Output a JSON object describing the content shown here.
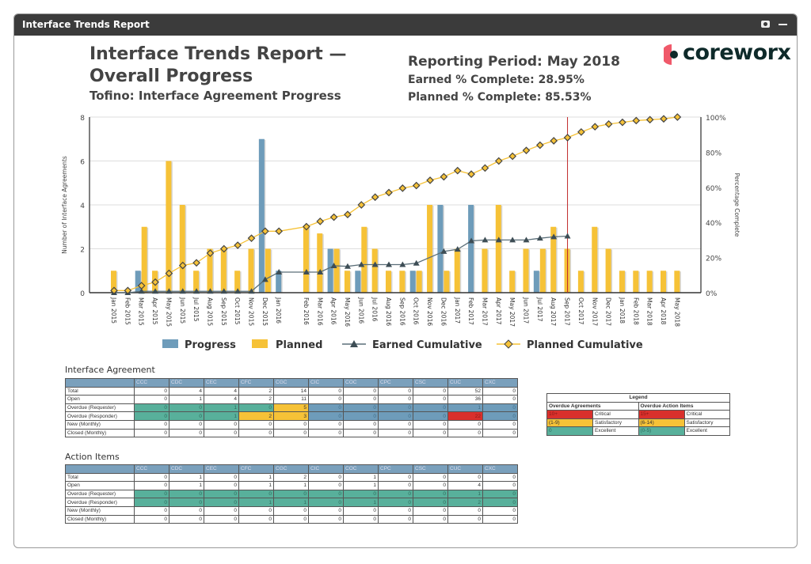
{
  "window": {
    "title": "Interface Trends Report",
    "icons": [
      "camera-icon",
      "minimize-icon"
    ]
  },
  "header": {
    "title": "Interface Trends Report — Overall Progress",
    "subtitle": "Tofino: Interface Agreement Progress",
    "reporting_period": "Reporting Period: May 2018",
    "earned": "Earned % Complete: 28.95%",
    "planned": "Planned % Complete: 85.53%",
    "logo": "coreworx"
  },
  "colors": {
    "progress": "#6e9cba",
    "planned": "#f6c237",
    "earned_line": "#5a6e78",
    "cutoff": "#c0292b",
    "green": "#58b09b",
    "yellow": "#f6c237",
    "red": "#d9302c",
    "blue": "#6e9cba"
  },
  "chart_data": {
    "type": "bar+line",
    "ylabel": "Number of Interface Agreements",
    "y2label": "Percentage Complete",
    "ylim": [
      0,
      8
    ],
    "yticks": [
      0,
      2,
      4,
      6,
      8
    ],
    "y2lim": [
      0,
      100
    ],
    "y2ticks": [
      "0%",
      "20%",
      "40%",
      "60%",
      "80%",
      "100%"
    ],
    "grid": true,
    "legend_position": "bottom",
    "cutoff_marker": "Sep 2017",
    "categories": [
      "Jan 2015",
      "Feb 2015",
      "Mar 2015",
      "Apr 2015",
      "May 2015",
      "Jun 2015",
      "Jul 2015",
      "Aug 2015",
      "Sep 2015",
      "Oct 2015",
      "Nov 2015",
      "Dec 2015",
      "Jan 2016",
      "Feb 2016",
      "Mar 2016",
      "Apr 2016",
      "May 2016",
      "Jun 2016",
      "Jul 2016",
      "Aug 2016",
      "Sep 2016",
      "Oct 2016",
      "Nov 2016",
      "Dec 2016",
      "Jan 2017",
      "Feb 2017",
      "Mar 2017",
      "Apr 2017",
      "May 2017",
      "Jun 2017",
      "Jul 2017",
      "Aug 2017",
      "Sep 2017",
      "Oct 2017",
      "Nov 2017",
      "Dec 2017",
      "Jan 2018",
      "Feb 2018",
      "Mar 2018",
      "Apr 2018",
      "May 2018"
    ],
    "series": [
      {
        "name": "Progress",
        "type": "bar",
        "axis": "left",
        "values": [
          0,
          0,
          1,
          0,
          0,
          0,
          0,
          0,
          0,
          0,
          0,
          7,
          1,
          0,
          0,
          2,
          0,
          1,
          0,
          0,
          0,
          1,
          0,
          4,
          0,
          4,
          0,
          0,
          0,
          0,
          1,
          0,
          0,
          0,
          0,
          0,
          0,
          0,
          0,
          0,
          0
        ]
      },
      {
        "name": "Planned",
        "type": "bar",
        "axis": "left",
        "values": [
          1,
          0,
          3,
          1,
          6,
          4,
          1,
          2,
          2,
          1,
          2,
          2,
          0,
          3,
          2.7,
          2,
          1,
          3,
          2,
          1,
          1,
          1,
          4,
          1,
          2,
          0,
          2,
          4,
          1,
          2,
          2,
          3,
          2,
          1,
          3,
          2,
          1,
          1,
          1,
          1,
          1
        ]
      },
      {
        "name": "Earned Cumulative",
        "type": "line",
        "axis": "right",
        "values": [
          0,
          0,
          0.8,
          0.8,
          0.8,
          0.8,
          0.8,
          0.8,
          0.8,
          0.8,
          0.8,
          7.5,
          11.7,
          11.7,
          11.7,
          15.3,
          15,
          16,
          16,
          16,
          16,
          16.8,
          null,
          23.5,
          24.7,
          29.5,
          30,
          30,
          30,
          30,
          31,
          31.8,
          32.2,
          null,
          null,
          null,
          null,
          null,
          null,
          null,
          null
        ]
      },
      {
        "name": "Planned Cumulative",
        "type": "line",
        "axis": "right",
        "values": [
          1.2,
          1.2,
          4,
          6,
          11,
          15.5,
          17,
          22.5,
          25,
          27,
          31,
          35,
          35,
          37.6,
          40.6,
          43,
          44.5,
          50,
          54.4,
          57,
          59.5,
          61,
          64,
          66,
          69.5,
          67.5,
          71,
          75,
          77.7,
          81,
          84,
          86.5,
          88.3,
          91.5,
          94.5,
          96,
          97,
          98,
          98.5,
          99,
          100
        ]
      }
    ]
  },
  "interface_agreement": {
    "title": "Interface Agreement",
    "columns": [
      "",
      "CCC",
      "CDC",
      "CEC",
      "CFC",
      "CGC",
      "CIC",
      "COC",
      "CPC",
      "CSC",
      "CUC",
      "CXC"
    ],
    "rows": [
      {
        "label": "Total",
        "values": [
          "0",
          "4",
          "4",
          "2",
          "14",
          "0",
          "0",
          "0",
          "0",
          "52",
          "0"
        ]
      },
      {
        "label": "Open",
        "values": [
          "0",
          "1",
          "4",
          "2",
          "11",
          "0",
          "0",
          "0",
          "0",
          "36",
          "0"
        ]
      },
      {
        "label": "Overdue (Requester)",
        "values": [
          "0",
          "0",
          "1",
          "0",
          "5",
          "0",
          "0",
          "0",
          "0",
          "1",
          "0"
        ],
        "status": [
          "green",
          "green",
          "green",
          "green",
          "yellow",
          "blue",
          "blue",
          "blue",
          "blue",
          "blue",
          "blue"
        ]
      },
      {
        "label": "Overdue (Responder)",
        "values": [
          "0",
          "0",
          "1",
          "2",
          "3",
          "0",
          "0",
          "0",
          "0",
          "22",
          "0"
        ],
        "status": [
          "green",
          "green",
          "green",
          "yellow",
          "yellow",
          "blue",
          "blue",
          "blue",
          "blue",
          "red",
          "blue"
        ]
      },
      {
        "label": "New (Monthly)",
        "values": [
          "0",
          "0",
          "0",
          "0",
          "0",
          "0",
          "0",
          "0",
          "0",
          "0",
          "0"
        ]
      },
      {
        "label": "Closed (Monthly)",
        "values": [
          "0",
          "0",
          "0",
          "0",
          "0",
          "0",
          "0",
          "0",
          "0",
          "0",
          "0"
        ]
      }
    ]
  },
  "action_items": {
    "title": "Action Items",
    "columns": [
      "",
      "CCC",
      "CDC",
      "CEC",
      "CFC",
      "CGC",
      "CIC",
      "COC",
      "CPC",
      "CSC",
      "CUC",
      "CXC"
    ],
    "rows": [
      {
        "label": "Total",
        "values": [
          "0",
          "1",
          "0",
          "1",
          "2",
          "0",
          "1",
          "0",
          "0",
          "0",
          "0"
        ]
      },
      {
        "label": "Open",
        "values": [
          "0",
          "1",
          "0",
          "1",
          "1",
          "0",
          "1",
          "0",
          "0",
          "4",
          "0"
        ]
      },
      {
        "label": "Overdue (Requester)",
        "values": [
          "0",
          "0",
          "0",
          "0",
          "0",
          "0",
          "0",
          "0",
          "0",
          "1",
          "0"
        ],
        "status": [
          "green",
          "green",
          "green",
          "green",
          "green",
          "green",
          "green",
          "green",
          "green",
          "green",
          "green"
        ]
      },
      {
        "label": "Overdue (Responder)",
        "values": [
          "0",
          "0",
          "0",
          "1",
          "1",
          "0",
          "1",
          "0",
          "0",
          "2",
          "0"
        ],
        "status": [
          "green",
          "green",
          "green",
          "green",
          "green",
          "green",
          "green",
          "green",
          "green",
          "green",
          "green"
        ]
      },
      {
        "label": "New (Monthly)",
        "values": [
          "0",
          "0",
          "0",
          "0",
          "0",
          "0",
          "0",
          "0",
          "0",
          "0",
          "0"
        ]
      },
      {
        "label": "Closed (Monthly)",
        "values": [
          "0",
          "0",
          "0",
          "0",
          "0",
          "0",
          "0",
          "0",
          "0",
          "0",
          "0"
        ]
      }
    ]
  },
  "legend": {
    "title": "Legend",
    "agreements_header": "Overdue Agreements",
    "actions_header": "Overdue Action Items",
    "rows": [
      {
        "status": "red",
        "agreements": "10+",
        "actions": "15+",
        "label": "Critical"
      },
      {
        "status": "yellow",
        "agreements": "(1-9)",
        "actions": "(6-14)",
        "label": "Satisfactory"
      },
      {
        "status": "green",
        "agreements": "0",
        "actions": "(0-5)",
        "label": "Excellent"
      }
    ]
  }
}
